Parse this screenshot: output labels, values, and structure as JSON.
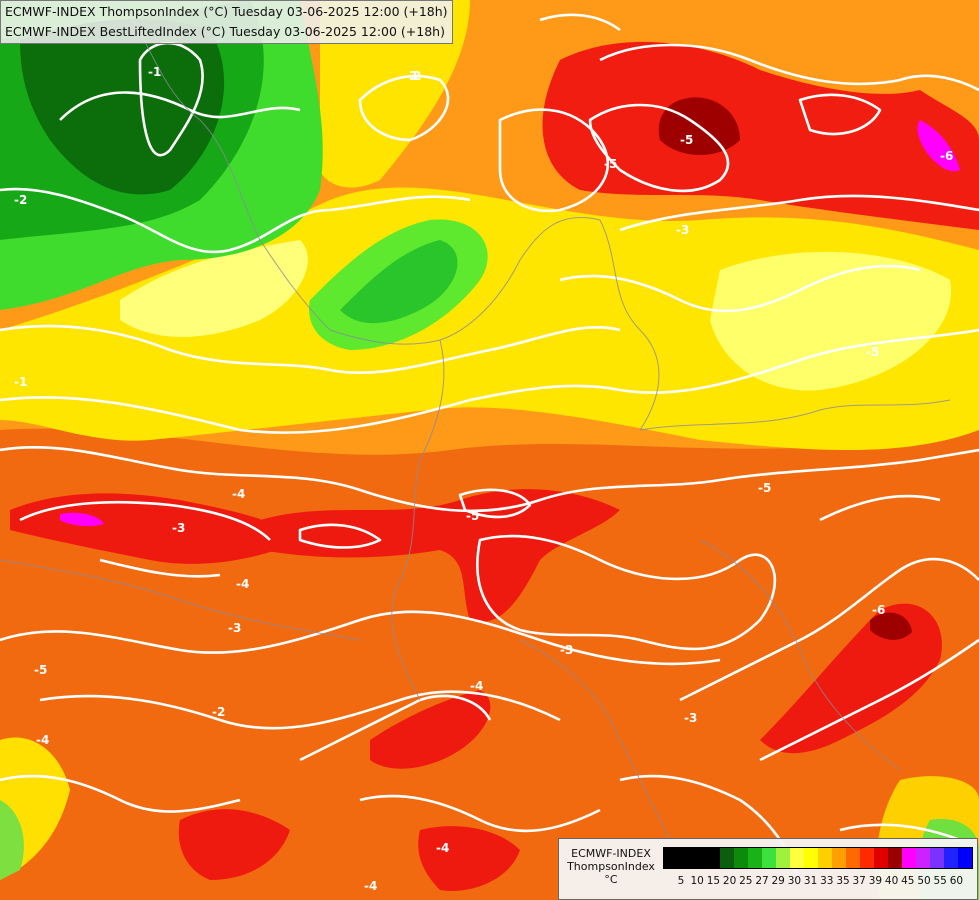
{
  "title": {
    "line1": "ECMWF-INDEX ThompsonIndex (°C) Tuesday 03-06-2025 12:00 (+18h)",
    "line2": "ECMWF-INDEX BestLiftedIndex (°C) Tuesday 03-06-2025 12:00 (+18h)"
  },
  "legend": {
    "line1": "ECMWF-INDEX",
    "line2": "ThompsonIndex",
    "line3": "°C",
    "ticks": [
      "5",
      "10",
      "15",
      "20",
      "25",
      "27",
      "29",
      "30",
      "31",
      "33",
      "35",
      "37",
      "39",
      "40",
      "45",
      "50",
      "55",
      "60"
    ],
    "colors": [
      "#000000",
      "#000000",
      "#000000",
      "#000000",
      "#0b5e0b",
      "#0b8a0b",
      "#19b319",
      "#3ee03e",
      "#a0f040",
      "#ffff40",
      "#ffff00",
      "#ffd000",
      "#ffa000",
      "#ff6a00",
      "#ff2a00",
      "#e00000",
      "#9b0000",
      "#ff00ff",
      "#cc22ff",
      "#7a33ff",
      "#2222ff",
      "#0000ff"
    ]
  },
  "contour_labels": [
    "-1",
    "-2",
    "-3",
    "-4",
    "-5",
    "-6",
    "-1",
    "-2",
    "-5",
    "-3",
    "-4",
    "-5",
    "-5",
    "-5",
    "-3",
    "-6",
    "-3",
    "-4",
    "-3",
    "-5",
    "-4",
    "-2",
    "-4",
    "-4",
    "-2"
  ]
}
